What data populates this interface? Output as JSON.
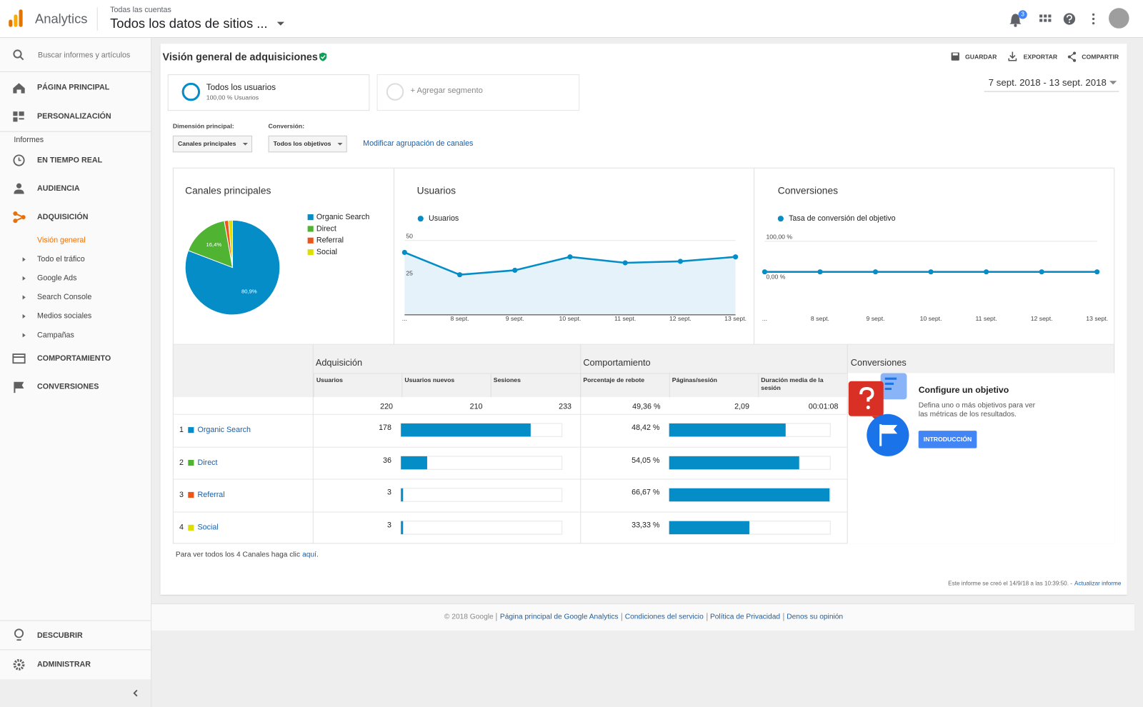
{
  "header": {
    "app": "Analytics",
    "breadcrumb": "Todas las cuentas",
    "property": "Todos los datos de sitios ...",
    "notifications": "3"
  },
  "sidebar": {
    "search": "Buscar informes y artículos",
    "top": [
      "PÁGINA PRINCIPAL",
      "PERSONALIZACIÓN"
    ],
    "section": "Informes",
    "reports": [
      "EN TIEMPO REAL",
      "AUDIENCIA",
      "ADQUISICIÓN"
    ],
    "active": "Visión general",
    "sub": [
      "Todo el tráfico",
      "Google Ads",
      "Search Console",
      "Medios sociales",
      "Campañas"
    ],
    "more": [
      "COMPORTAMIENTO",
      "CONVERSIONES"
    ],
    "bottom": [
      "DESCUBRIR",
      "ADMINISTRAR"
    ]
  },
  "page": {
    "title": "Visión general de adquisiciones",
    "actions": [
      "GUARDAR",
      "EXPORTAR",
      "COMPARTIR"
    ],
    "segment": {
      "name": "Todos los usuarios",
      "detail": "100,00 % Usuarios"
    },
    "add_segment": "+ Agregar segmento",
    "date_range": "7 sept. 2018 - 13 sept. 2018",
    "dimension": {
      "label": "Dimensión principal:",
      "value": "Canales principales"
    },
    "conversion": {
      "label": "Conversión:",
      "value": "Todos los objetivos"
    },
    "modify_link": "Modificar agrupación de canales"
  },
  "charts": [
    {
      "type": "pie",
      "title": "Canales principales",
      "categories": [
        "Organic Search",
        "Direct",
        "Referral",
        "Social"
      ],
      "values": [
        80.9,
        16.4,
        1.4,
        1.4
      ],
      "value_labels": [
        "80,9%",
        "16,4%",
        null,
        null
      ],
      "colors": [
        "#058dc7",
        "#50b432",
        "#ed561b",
        "#dddf00"
      ]
    },
    {
      "type": "line",
      "title": "Usuarios",
      "x": [
        "...",
        "8 sept.",
        "9 sept.",
        "10 sept.",
        "11 sept.",
        "12 sept.",
        "13 sept."
      ],
      "series": [
        {
          "name": "Usuarios",
          "color": "#058dc7",
          "values": [
            42,
            27,
            30,
            39,
            35,
            36,
            39
          ]
        }
      ],
      "ylim": [
        0,
        50
      ],
      "yticks": [
        25,
        50
      ],
      "area": true
    },
    {
      "type": "line",
      "title": "Conversiones",
      "x": [
        "...",
        "8 sept.",
        "9 sept.",
        "10 sept.",
        "11 sept.",
        "12 sept.",
        "13 sept."
      ],
      "series": [
        {
          "name": "Tasa de conversión del objetivo",
          "color": "#058dc7",
          "values": [
            0,
            0,
            0,
            0,
            0,
            0,
            0
          ]
        }
      ],
      "ylim": [
        0,
        100
      ],
      "yticks": [
        {
          "value": 0,
          "label": "0,00 %"
        },
        {
          "value": 100,
          "label": "100,00 %"
        }
      ],
      "area": false
    }
  ],
  "table": {
    "groups": [
      "Adquisición",
      "Comportamiento",
      "Conversiones"
    ],
    "columns": [
      "Usuarios",
      "Usuarios nuevos",
      "Sesiones",
      "Porcentaje de rebote",
      "Páginas/sesión",
      "Duración media de la sesión"
    ],
    "totals": [
      220,
      210,
      233,
      "49,36 %",
      "2,09",
      "00:01:08"
    ],
    "rows": [
      {
        "rank": 1,
        "name": "Organic Search",
        "color": "#058dc7",
        "users": 178,
        "bounce": {
          "value": 48.42,
          "label": "48,42 %"
        }
      },
      {
        "rank": 2,
        "name": "Direct",
        "color": "#50b432",
        "users": 36,
        "bounce": {
          "value": 54.05,
          "label": "54,05 %"
        }
      },
      {
        "rank": 3,
        "name": "Referral",
        "color": "#ed561b",
        "users": 3,
        "bounce": {
          "value": 66.67,
          "label": "66,67 %"
        }
      },
      {
        "rank": 4,
        "name": "Social",
        "color": "#dddf00",
        "users": 3,
        "bounce": {
          "value": 33.33,
          "label": "33,33 %"
        }
      }
    ]
  },
  "goal": {
    "title": "Configure un objetivo",
    "text": "Defina uno o más objetivos para ver las métricas de los resultados.",
    "button": "INTRODUCCIÓN"
  },
  "note": {
    "text": "Para ver todos los 4 Canales haga clic",
    "link": "aquí",
    "end": "."
  },
  "report": {
    "text": "Este informe se creó el 14/9/18 a las 10:39:50. -",
    "link": "Actualizar informe"
  },
  "footer": [
    "© 2018 Google",
    "Página principal de Google Analytics",
    "Condiciones del servicio",
    "Política de Privacidad",
    "Denos su opinión"
  ]
}
